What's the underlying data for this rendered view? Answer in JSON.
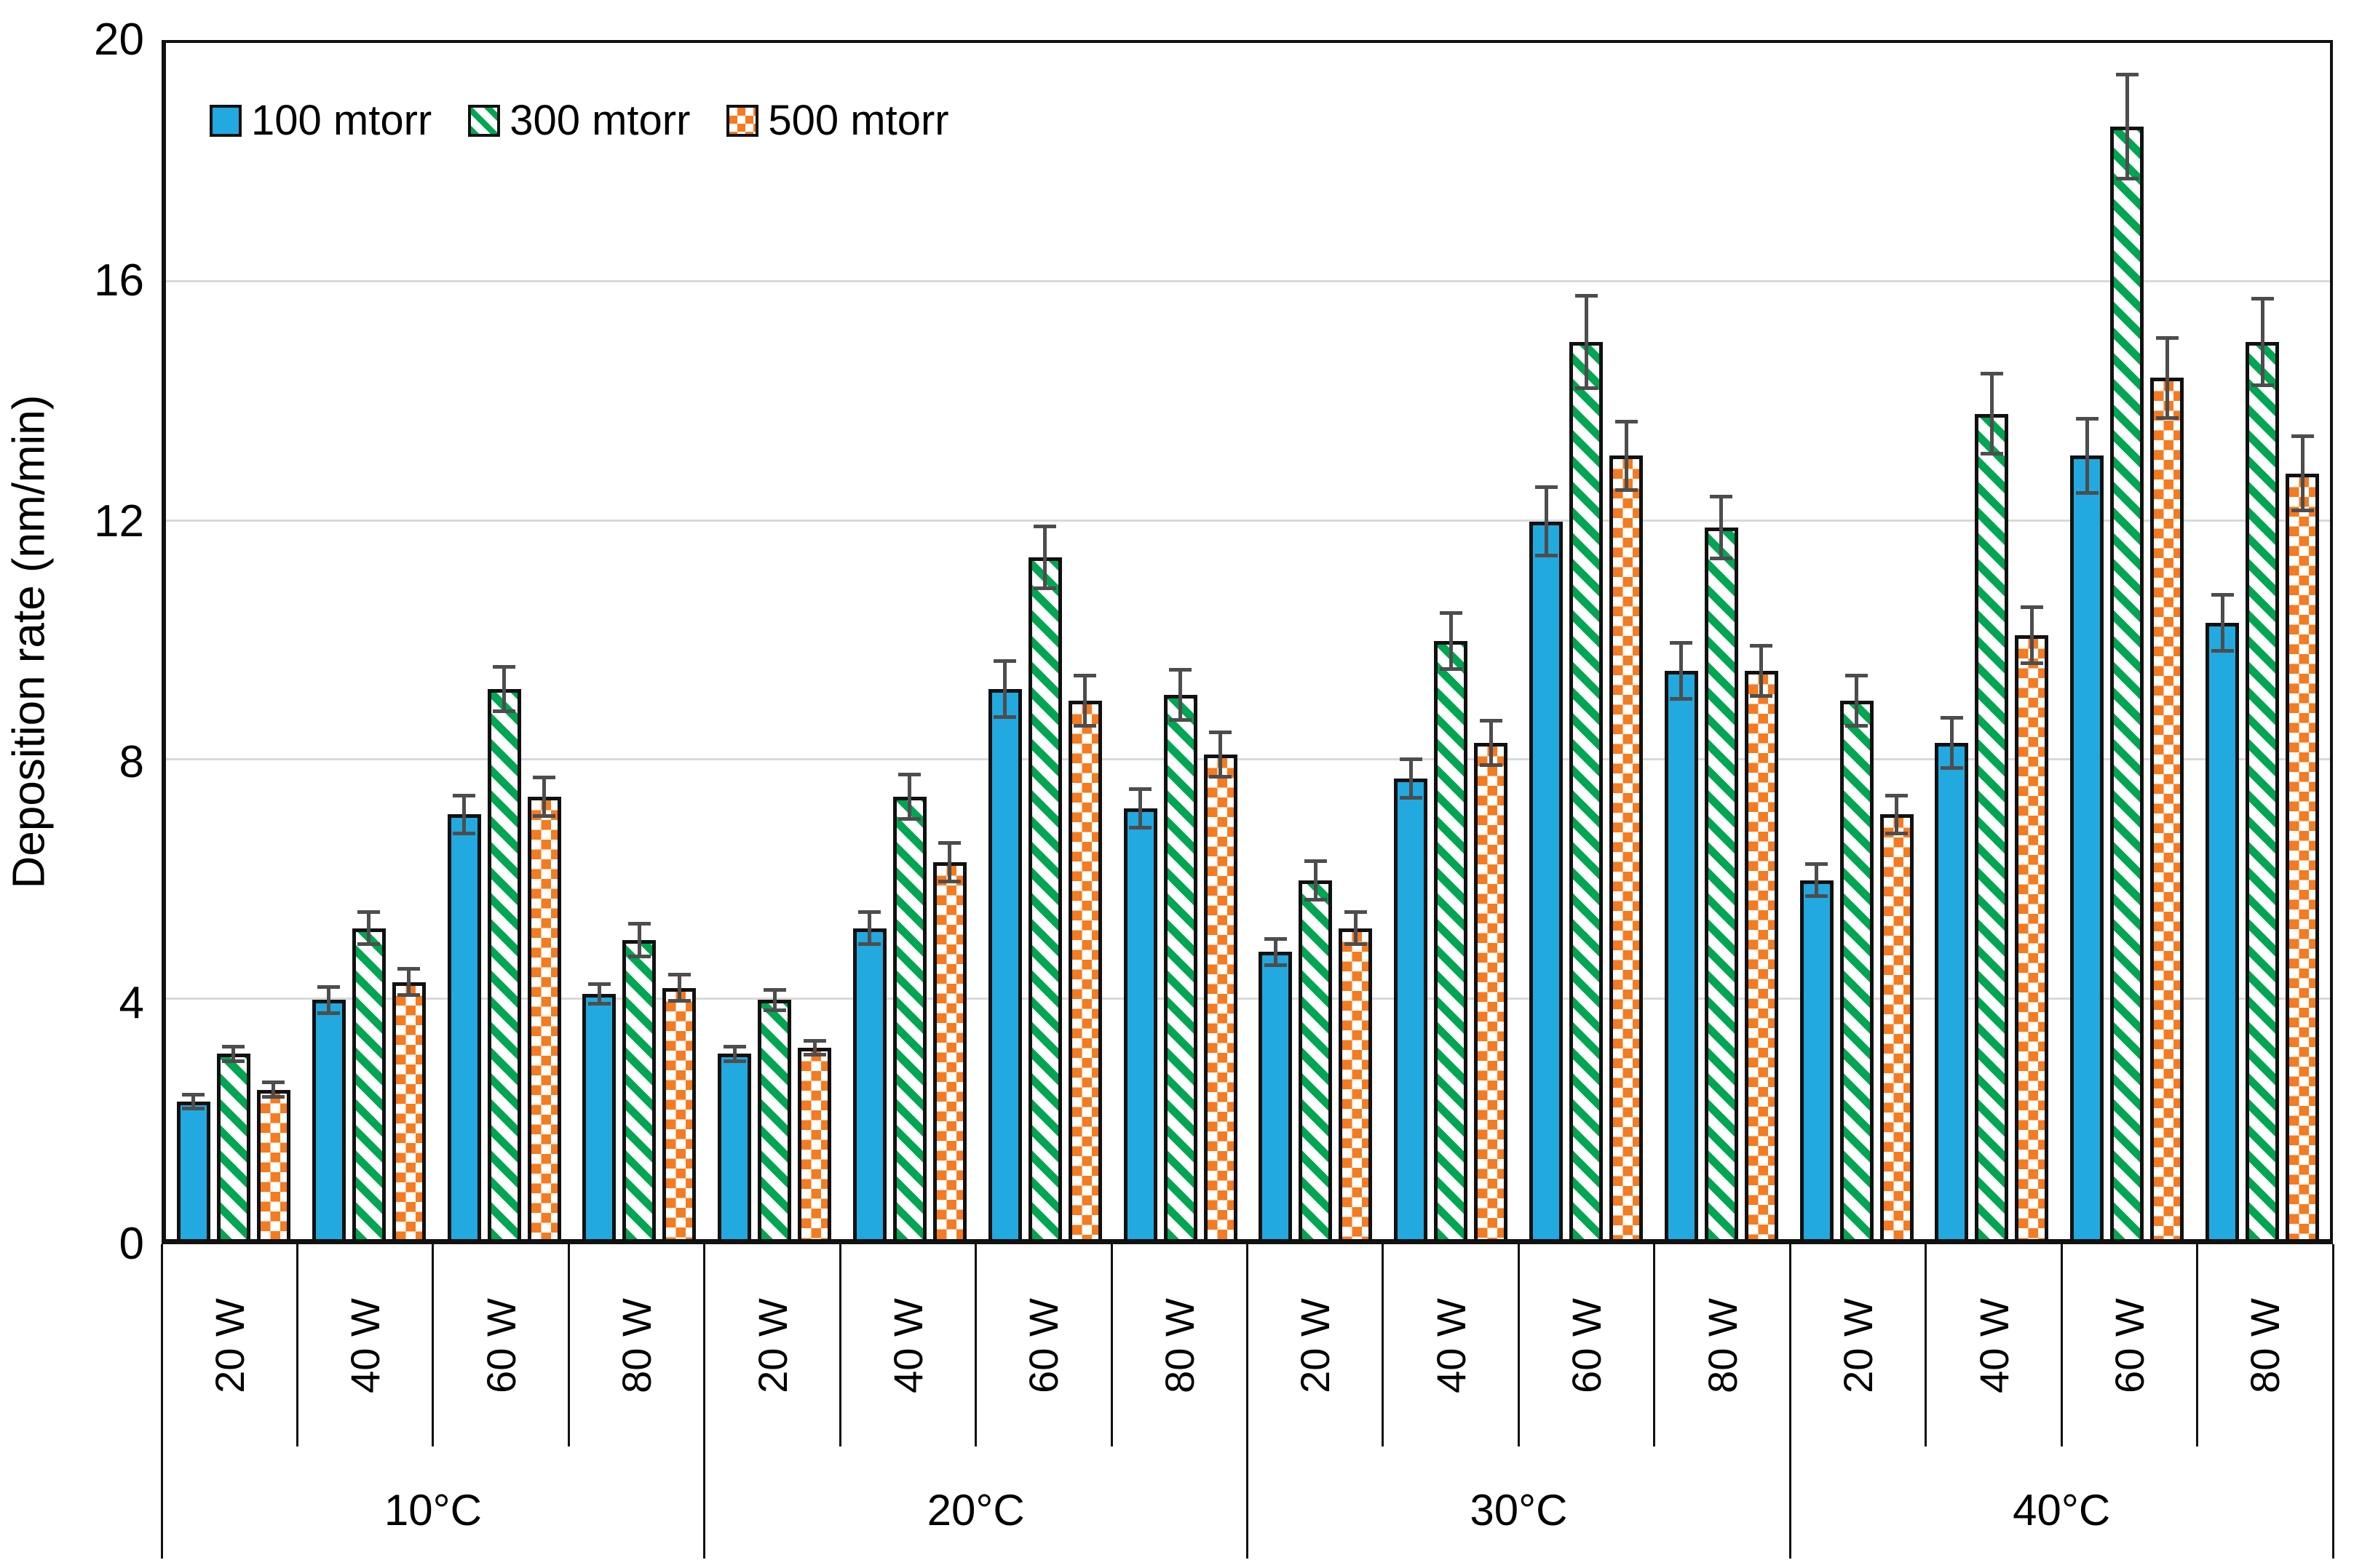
{
  "chart_data": {
    "type": "bar",
    "title": "",
    "xlabel": "",
    "ylabel": "Deposition rate (nm/min)",
    "ylim": [
      0,
      20
    ],
    "yticks": [
      0,
      4,
      8,
      12,
      16,
      20
    ],
    "grid": "horizontal gridlines every 4 units, light gray",
    "legend_position": "top-left inside plot",
    "group_categories": [
      "10°C",
      "20°C",
      "30°C",
      "40°C"
    ],
    "power_categories": [
      "20 W",
      "40 W",
      "60 W",
      "80 W"
    ],
    "error_bar_color": "#4d4d4d",
    "series": [
      {
        "name": "100 mtorr",
        "pattern": "solid",
        "color": "#22A9E0",
        "values": [
          [
            2.3,
            4.0,
            7.1,
            4.1
          ],
          [
            3.1,
            5.2,
            9.2,
            7.2
          ],
          [
            4.8,
            7.7,
            12.0,
            9.5
          ],
          [
            6.0,
            8.3,
            13.1,
            10.3
          ]
        ],
        "errors": [
          [
            0.15,
            0.25,
            0.35,
            0.2
          ],
          [
            0.15,
            0.3,
            0.5,
            0.35
          ],
          [
            0.25,
            0.35,
            0.6,
            0.5
          ],
          [
            0.3,
            0.45,
            0.65,
            0.5
          ]
        ]
      },
      {
        "name": "300 mtorr",
        "pattern": "stripes",
        "color": "#00A651",
        "values": [
          [
            3.1,
            5.2,
            9.2,
            5.0
          ],
          [
            4.0,
            7.4,
            11.4,
            9.1
          ],
          [
            6.0,
            10.0,
            15.0,
            11.9
          ],
          [
            9.0,
            13.8,
            18.6,
            15.0
          ]
        ],
        "errors": [
          [
            0.15,
            0.3,
            0.4,
            0.3
          ],
          [
            0.2,
            0.4,
            0.55,
            0.45
          ],
          [
            0.35,
            0.5,
            0.8,
            0.55
          ],
          [
            0.45,
            0.7,
            0.9,
            0.75
          ]
        ]
      },
      {
        "name": "500 mtorr",
        "pattern": "checker",
        "color": "#F47B20",
        "values": [
          [
            2.5,
            4.3,
            7.4,
            4.2
          ],
          [
            3.2,
            6.3,
            9.0,
            8.1
          ],
          [
            5.2,
            8.3,
            13.1,
            9.5
          ],
          [
            7.1,
            10.1,
            14.4,
            12.8
          ]
        ],
        "errors": [
          [
            0.15,
            0.25,
            0.35,
            0.25
          ],
          [
            0.15,
            0.35,
            0.45,
            0.4
          ],
          [
            0.3,
            0.4,
            0.6,
            0.45
          ],
          [
            0.35,
            0.5,
            0.7,
            0.65
          ]
        ]
      }
    ]
  }
}
